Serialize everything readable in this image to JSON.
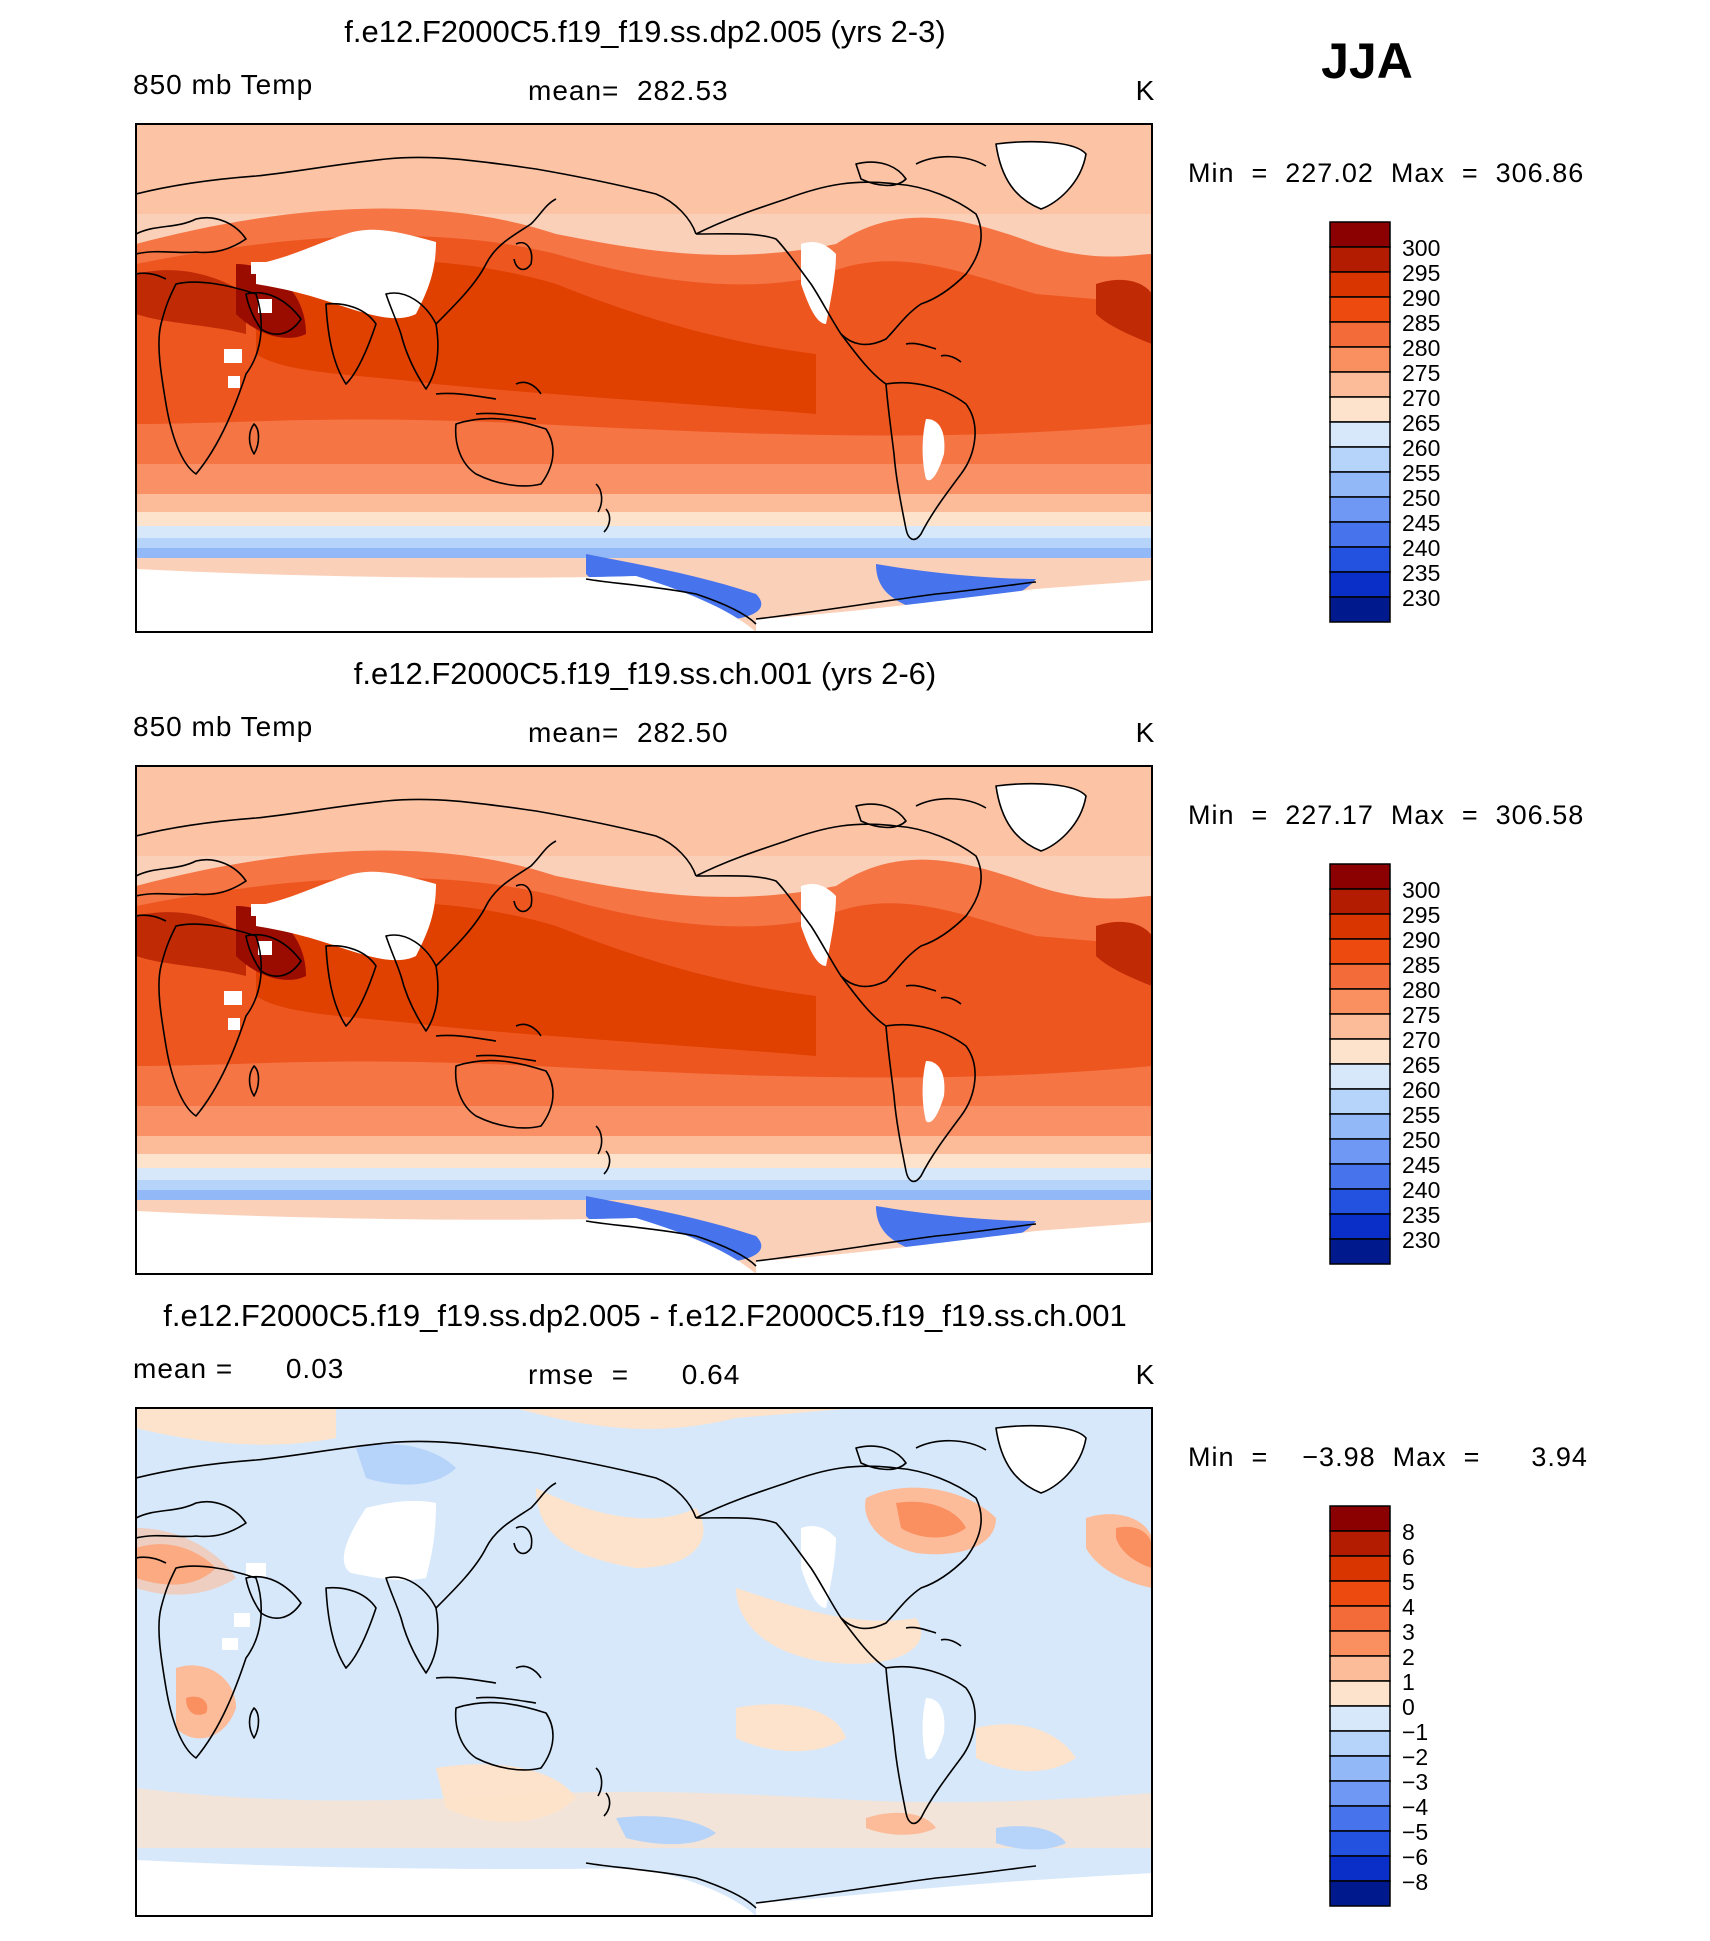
{
  "season": "JJA",
  "panels": [
    {
      "title": "f.e12.F2000C5.f19_f19.ss.dp2.005 (yrs 2-3)",
      "left_label": "850 mb Temp",
      "mid_label": "mean=  282.53",
      "unit": "K",
      "minmax": "Min  =  227.02  Max  =  306.86",
      "kind": "abs"
    },
    {
      "title": "f.e12.F2000C5.f19_f19.ss.ch.001 (yrs 2-6)",
      "left_label": "850 mb Temp",
      "mid_label": "mean=  282.50",
      "unit": "K",
      "minmax": "Min  =  227.17  Max  =  306.58",
      "kind": "abs"
    },
    {
      "title": "f.e12.F2000C5.f19_f19.ss.dp2.005 - f.e12.F2000C5.f19_f19.ss.ch.001",
      "left_label": "mean =      0.03",
      "mid_label": "rmse  =      0.64",
      "unit": "K",
      "minmax": "Min  =    −3.98  Max  =      3.94",
      "kind": "diff"
    }
  ],
  "colorbars": {
    "abs": {
      "labels": [
        "300",
        "295",
        "290",
        "285",
        "280",
        "275",
        "270",
        "265",
        "260",
        "255",
        "250",
        "245",
        "240",
        "235",
        "230"
      ],
      "colors": [
        "#8b0000",
        "#b31c00",
        "#d93500",
        "#ed4a10",
        "#f46b3a",
        "#fa8f60",
        "#fcbc9a",
        "#fde3cb",
        "#d7e8fa",
        "#b6d3fa",
        "#93b8f7",
        "#6e98f3",
        "#4774ec",
        "#2351e0",
        "#0a2ec8",
        "#001a8e"
      ]
    },
    "diff": {
      "labels": [
        "8",
        "6",
        "5",
        "4",
        "3",
        "2",
        "1",
        "0",
        "−1",
        "−2",
        "−3",
        "−4",
        "−5",
        "−6",
        "−8"
      ],
      "colors": [
        "#8b0000",
        "#b31c00",
        "#d93500",
        "#ed4a10",
        "#f46b3a",
        "#fa8f60",
        "#fcbc9a",
        "#fde3cb",
        "#d7e8fa",
        "#b6d3fa",
        "#93b8f7",
        "#6e98f3",
        "#4774ec",
        "#2351e0",
        "#0a2ec8",
        "#001a8e"
      ]
    }
  }
}
